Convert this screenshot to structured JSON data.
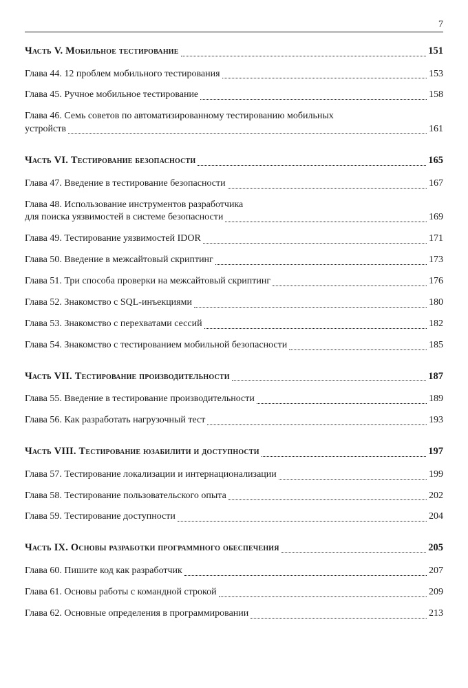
{
  "page_number": "7",
  "colors": {
    "text": "#1a1a1a",
    "background": "#ffffff",
    "rule": "#1a1a1a",
    "dots": "#1a1a1a"
  },
  "typography": {
    "body_family": "Georgia, Times New Roman, serif",
    "body_size_pt": 11,
    "part_bold": true,
    "part_small_caps": true
  },
  "sections": [
    {
      "part_prefix": "Часть V. ",
      "part_title": "Мобильное тестирование",
      "part_page": "151",
      "chapters": [
        {
          "label": "Глава 44. 12 проблем мобильного тестирования",
          "page": "153"
        },
        {
          "label": "Глава 45. Ручное мобильное тестирование",
          "page": "158"
        },
        {
          "label_lines": [
            "Глава 46. Семь советов по автоматизированному тестированию мобильных",
            "устройств"
          ],
          "page": "161"
        }
      ]
    },
    {
      "part_prefix": "Часть VI. ",
      "part_title": "Тестирование безопасности",
      "part_page": "165",
      "chapters": [
        {
          "label": "Глава 47. Введение в тестирование безопасности",
          "page": "167"
        },
        {
          "label_lines": [
            "Глава 48. Использование инструментов разработчика",
            "для поиска уязвимостей в системе безопасности"
          ],
          "page": "169"
        },
        {
          "label": "Глава 49. Тестирование уязвимостей IDOR",
          "page": "171"
        },
        {
          "label": "Глава 50. Введение в межсайтовый скриптинг",
          "page": "173"
        },
        {
          "label": "Глава 51. Три способа проверки на межсайтовый скриптинг",
          "page": "176"
        },
        {
          "label": "Глава 52. Знакомство с SQL-инъекциями",
          "page": "180"
        },
        {
          "label": "Глава 53. Знакомство с перехватами сессий",
          "page": "182"
        },
        {
          "label": "Глава 54. Знакомство с тестированием мобильной безопасности",
          "page": "185"
        }
      ]
    },
    {
      "part_prefix": "Часть VII. ",
      "part_title": "Тестирование производительности",
      "part_page": "187",
      "chapters": [
        {
          "label": "Глава 55. Введение в тестирование производительности",
          "page": "189"
        },
        {
          "label": "Глава 56. Как разработать нагрузочный тест",
          "page": "193"
        }
      ]
    },
    {
      "part_prefix": "Часть VIII. ",
      "part_title": "Тестирование юзабилити и доступности",
      "part_page": "197",
      "chapters": [
        {
          "label": "Глава 57. Тестирование локализации и интернационализации",
          "page": "199"
        },
        {
          "label": "Глава 58. Тестирование пользовательского опыта",
          "page": "202"
        },
        {
          "label": "Глава 59. Тестирование доступности",
          "page": "204"
        }
      ]
    },
    {
      "part_prefix": "Часть IX. ",
      "part_title": "Основы разработки программного обеспечения",
      "part_page": "205",
      "chapters": [
        {
          "label": "Глава 60. Пишите код как разработчик",
          "page": "207"
        },
        {
          "label": "Глава 61. Основы работы с командной строкой",
          "page": "209"
        },
        {
          "label": "Глава 62. Основные определения в программировании",
          "page": "213"
        }
      ]
    }
  ]
}
